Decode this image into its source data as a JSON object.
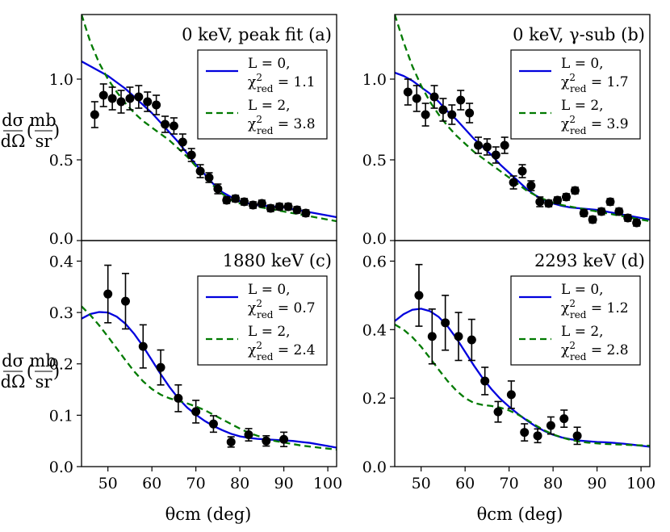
{
  "figure": {
    "xlabel": "θcm (deg)",
    "ylabel": "dσ/dΩ (mb/sr)"
  },
  "chart_data": [
    {
      "type": "scatter",
      "id": "a",
      "title": "0 keV, peak fit (a)",
      "xlim": [
        44,
        102
      ],
      "ylim": [
        0,
        1.4
      ],
      "xticks": [],
      "yticks": [
        0.0,
        0.5,
        1.0
      ],
      "ytick_labels": [
        "0.0",
        "0.5",
        "1.0"
      ],
      "legend": [
        {
          "line1": "L = 0,",
          "line2": "χ²red = 1.1",
          "color": "#0000dd",
          "style": "solid"
        },
        {
          "line1": "L = 2,",
          "line2": "χ²red = 3.8",
          "color": "#007a00",
          "style": "dashed"
        }
      ],
      "points": {
        "x": [
          47,
          49,
          51,
          53,
          55,
          57,
          59,
          61,
          63,
          65,
          67,
          69,
          71,
          73,
          75,
          77,
          79,
          81,
          83,
          85,
          87,
          89,
          91,
          93,
          95
        ],
        "y": [
          0.78,
          0.9,
          0.88,
          0.86,
          0.88,
          0.89,
          0.86,
          0.84,
          0.72,
          0.71,
          0.61,
          0.53,
          0.43,
          0.39,
          0.32,
          0.25,
          0.26,
          0.24,
          0.22,
          0.23,
          0.2,
          0.21,
          0.21,
          0.19,
          0.17
        ],
        "err": [
          0.08,
          0.07,
          0.07,
          0.07,
          0.07,
          0.07,
          0.06,
          0.06,
          0.05,
          0.05,
          0.05,
          0.04,
          0.04,
          0.03,
          0.03,
          0.02,
          0.02,
          0.02,
          0.02,
          0.02,
          0.02,
          0.02,
          0.02,
          0.02,
          0.02
        ]
      },
      "series": [
        {
          "name": "L = 0",
          "color": "#0000dd",
          "style": "solid",
          "x": [
            44,
            46,
            48,
            50,
            52,
            54,
            56,
            58,
            60,
            62,
            64,
            66,
            68,
            70,
            72,
            74,
            76,
            78,
            80,
            82,
            84,
            86,
            88,
            90,
            92,
            94,
            96,
            98,
            100,
            102
          ],
          "y": [
            1.11,
            1.08,
            1.05,
            1.02,
            0.98,
            0.94,
            0.89,
            0.84,
            0.79,
            0.73,
            0.67,
            0.61,
            0.54,
            0.47,
            0.41,
            0.35,
            0.3,
            0.27,
            0.245,
            0.23,
            0.22,
            0.215,
            0.21,
            0.205,
            0.195,
            0.185,
            0.175,
            0.165,
            0.155,
            0.145
          ]
        },
        {
          "name": "L = 2",
          "color": "#007a00",
          "style": "dashed",
          "x": [
            44,
            46,
            48,
            50,
            52,
            54,
            56,
            58,
            60,
            62,
            64,
            66,
            68,
            70,
            72,
            74,
            76,
            78,
            80,
            82,
            84,
            86,
            88,
            90,
            92,
            94,
            96,
            98,
            100,
            102
          ],
          "y": [
            1.4,
            1.23,
            1.1,
            1.0,
            0.92,
            0.85,
            0.79,
            0.74,
            0.7,
            0.66,
            0.62,
            0.57,
            0.52,
            0.46,
            0.4,
            0.34,
            0.29,
            0.25,
            0.23,
            0.22,
            0.21,
            0.2,
            0.19,
            0.18,
            0.17,
            0.16,
            0.15,
            0.14,
            0.13,
            0.12
          ]
        }
      ]
    },
    {
      "type": "scatter",
      "id": "b",
      "title": "0 keV, γ-sub (b)",
      "xlim": [
        44,
        102
      ],
      "ylim": [
        0,
        1.4
      ],
      "xticks": [],
      "yticks": [
        0.0,
        0.5,
        1.0
      ],
      "ytick_labels": [
        "0.0",
        "0.5",
        "1.0"
      ],
      "legend": [
        {
          "line1": "L = 0,",
          "line2": "χ²red = 1.7",
          "color": "#0000dd",
          "style": "solid"
        },
        {
          "line1": "L = 2,",
          "line2": "χ²red = 3.9",
          "color": "#007a00",
          "style": "dashed"
        }
      ],
      "points": {
        "x": [
          47,
          49,
          51,
          53,
          55,
          57,
          59,
          61,
          63,
          65,
          67,
          69,
          71,
          73,
          75,
          77,
          79,
          81,
          83,
          85,
          87,
          89,
          91,
          93,
          95,
          97,
          99
        ],
        "y": [
          0.92,
          0.88,
          0.78,
          0.89,
          0.81,
          0.78,
          0.87,
          0.79,
          0.59,
          0.58,
          0.53,
          0.59,
          0.36,
          0.43,
          0.34,
          0.24,
          0.23,
          0.25,
          0.27,
          0.31,
          0.17,
          0.13,
          0.18,
          0.24,
          0.18,
          0.14,
          0.11
        ],
        "err": [
          0.08,
          0.08,
          0.07,
          0.07,
          0.07,
          0.06,
          0.06,
          0.06,
          0.05,
          0.05,
          0.05,
          0.05,
          0.04,
          0.04,
          0.03,
          0.03,
          0.02,
          0.02,
          0.02,
          0.02,
          0.02,
          0.02,
          0.02,
          0.02,
          0.02,
          0.02,
          0.02
        ]
      },
      "series": [
        {
          "name": "L = 0",
          "color": "#0000dd",
          "style": "solid",
          "x": [
            44,
            46,
            48,
            50,
            52,
            54,
            56,
            58,
            60,
            62,
            64,
            66,
            68,
            70,
            72,
            74,
            76,
            78,
            80,
            82,
            84,
            86,
            88,
            90,
            92,
            94,
            96,
            98,
            100,
            102
          ],
          "y": [
            1.04,
            1.02,
            0.99,
            0.95,
            0.91,
            0.86,
            0.8,
            0.75,
            0.69,
            0.63,
            0.58,
            0.53,
            0.47,
            0.42,
            0.37,
            0.32,
            0.28,
            0.25,
            0.23,
            0.215,
            0.205,
            0.2,
            0.195,
            0.19,
            0.18,
            0.17,
            0.16,
            0.15,
            0.14,
            0.13
          ]
        },
        {
          "name": "L = 2",
          "color": "#007a00",
          "style": "dashed",
          "x": [
            44,
            46,
            48,
            50,
            52,
            54,
            56,
            58,
            60,
            62,
            64,
            66,
            68,
            70,
            72,
            74,
            76,
            78,
            80,
            82,
            84,
            86,
            88,
            90,
            92,
            94,
            96,
            98,
            100,
            102
          ],
          "y": [
            1.4,
            1.23,
            1.08,
            0.96,
            0.86,
            0.78,
            0.71,
            0.65,
            0.6,
            0.55,
            0.51,
            0.47,
            0.43,
            0.39,
            0.35,
            0.31,
            0.28,
            0.255,
            0.235,
            0.22,
            0.21,
            0.2,
            0.19,
            0.18,
            0.17,
            0.16,
            0.15,
            0.14,
            0.13,
            0.12
          ]
        }
      ]
    },
    {
      "type": "scatter",
      "id": "c",
      "title": "1880 keV (c)",
      "xlim": [
        44,
        102
      ],
      "ylim": [
        0,
        0.44
      ],
      "xticks": [
        50,
        60,
        70,
        80,
        90,
        100
      ],
      "yticks": [
        0.0,
        0.1,
        0.2,
        0.3,
        0.4
      ],
      "ytick_labels": [
        "0.0",
        "0.1",
        "0.2",
        "0.3",
        "0.4"
      ],
      "legend": [
        {
          "line1": "L = 0,",
          "line2": "χ²red = 0.7",
          "color": "#0000dd",
          "style": "solid"
        },
        {
          "line1": "L = 2,",
          "line2": "χ²red = 2.4",
          "color": "#007a00",
          "style": "dashed"
        }
      ],
      "points": {
        "x": [
          50,
          54,
          58,
          62,
          66,
          70,
          74,
          78,
          82,
          86,
          90
        ],
        "y": [
          0.336,
          0.322,
          0.234,
          0.193,
          0.133,
          0.107,
          0.083,
          0.048,
          0.062,
          0.05,
          0.053
        ],
        "err": [
          0.056,
          0.054,
          0.042,
          0.034,
          0.026,
          0.022,
          0.016,
          0.01,
          0.012,
          0.01,
          0.014
        ]
      },
      "series": [
        {
          "name": "L = 0",
          "color": "#0000dd",
          "style": "solid",
          "x": [
            44,
            46,
            48,
            50,
            52,
            54,
            56,
            58,
            60,
            62,
            64,
            66,
            68,
            70,
            72,
            74,
            76,
            78,
            80,
            82,
            84,
            86,
            88,
            90,
            92,
            94,
            96,
            98,
            100,
            102
          ],
          "y": [
            0.288,
            0.297,
            0.301,
            0.3,
            0.292,
            0.278,
            0.258,
            0.234,
            0.207,
            0.18,
            0.155,
            0.133,
            0.115,
            0.101,
            0.089,
            0.079,
            0.071,
            0.064,
            0.059,
            0.056,
            0.054,
            0.053,
            0.052,
            0.051,
            0.05,
            0.048,
            0.046,
            0.043,
            0.04,
            0.037
          ]
        },
        {
          "name": "L = 2",
          "color": "#007a00",
          "style": "dashed",
          "x": [
            44,
            46,
            48,
            50,
            52,
            54,
            56,
            58,
            60,
            62,
            64,
            66,
            68,
            70,
            72,
            74,
            76,
            78,
            80,
            82,
            84,
            86,
            88,
            90,
            92,
            94,
            96,
            98,
            100,
            102
          ],
          "y": [
            0.312,
            0.295,
            0.275,
            0.253,
            0.23,
            0.207,
            0.185,
            0.166,
            0.151,
            0.14,
            0.133,
            0.128,
            0.123,
            0.117,
            0.11,
            0.101,
            0.092,
            0.083,
            0.074,
            0.066,
            0.06,
            0.055,
            0.05,
            0.047,
            0.044,
            0.041,
            0.039,
            0.037,
            0.035,
            0.033
          ]
        }
      ]
    },
    {
      "type": "scatter",
      "id": "d",
      "title": "2293 keV (d)",
      "xlim": [
        44,
        102
      ],
      "ylim": [
        0,
        0.66
      ],
      "xticks": [
        50,
        60,
        70,
        80,
        90,
        100
      ],
      "yticks": [
        0.0,
        0.2,
        0.4,
        0.6
      ],
      "ytick_labels": [
        "0.0",
        "0.2",
        "0.4",
        "0.6"
      ],
      "legend": [
        {
          "line1": "L = 0,",
          "line2": "χ²red = 1.2",
          "color": "#0000dd",
          "style": "solid"
        },
        {
          "line1": "L = 2,",
          "line2": "χ²red = 2.8",
          "color": "#007a00",
          "style": "dashed"
        }
      ],
      "points": {
        "x": [
          49.5,
          52.5,
          55.5,
          58.5,
          61.5,
          64.5,
          67.5,
          70.5,
          73.5,
          76.5,
          79.5,
          82.5,
          85.5
        ],
        "y": [
          0.5,
          0.38,
          0.42,
          0.38,
          0.37,
          0.25,
          0.16,
          0.21,
          0.1,
          0.09,
          0.12,
          0.14,
          0.09
        ],
        "err": [
          0.09,
          0.08,
          0.08,
          0.07,
          0.06,
          0.04,
          0.03,
          0.04,
          0.025,
          0.02,
          0.025,
          0.025,
          0.025
        ]
      },
      "series": [
        {
          "name": "L = 0",
          "color": "#0000dd",
          "style": "solid",
          "x": [
            44,
            46,
            48,
            50,
            52,
            54,
            56,
            58,
            60,
            62,
            64,
            66,
            68,
            70,
            72,
            74,
            76,
            78,
            80,
            82,
            84,
            86,
            88,
            90,
            92,
            94,
            96,
            98,
            100,
            102
          ],
          "y": [
            0.425,
            0.445,
            0.458,
            0.461,
            0.454,
            0.437,
            0.41,
            0.375,
            0.335,
            0.295,
            0.258,
            0.226,
            0.198,
            0.175,
            0.154,
            0.135,
            0.118,
            0.104,
            0.093,
            0.085,
            0.08,
            0.076,
            0.074,
            0.072,
            0.071,
            0.069,
            0.067,
            0.064,
            0.061,
            0.058
          ]
        },
        {
          "name": "L = 2",
          "color": "#007a00",
          "style": "dashed",
          "x": [
            44,
            46,
            48,
            50,
            52,
            54,
            56,
            58,
            60,
            62,
            64,
            66,
            68,
            70,
            72,
            74,
            76,
            78,
            80,
            82,
            84,
            86,
            88,
            90,
            92,
            94,
            96,
            98,
            100,
            102
          ],
          "y": [
            0.415,
            0.4,
            0.378,
            0.35,
            0.317,
            0.283,
            0.25,
            0.222,
            0.2,
            0.186,
            0.18,
            0.177,
            0.172,
            0.164,
            0.152,
            0.137,
            0.121,
            0.106,
            0.094,
            0.085,
            0.078,
            0.073,
            0.07,
            0.068,
            0.066,
            0.065,
            0.064,
            0.063,
            0.062,
            0.061
          ]
        }
      ]
    }
  ]
}
